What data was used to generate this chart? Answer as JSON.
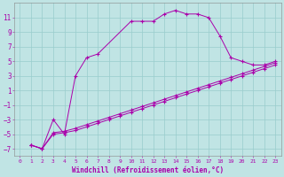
{
  "xlabel": "Windchill (Refroidissement éolien,°C)",
  "bg_color": "#c0e4e4",
  "grid_color": "#99cccc",
  "line_color": "#aa00aa",
  "xlim": [
    -0.5,
    23.5
  ],
  "ylim": [
    -8,
    13
  ],
  "xticks": [
    0,
    1,
    2,
    3,
    4,
    5,
    6,
    7,
    8,
    9,
    10,
    11,
    12,
    13,
    14,
    15,
    16,
    17,
    18,
    19,
    20,
    21,
    22,
    23
  ],
  "yticks": [
    -7,
    -5,
    -3,
    -1,
    1,
    3,
    5,
    7,
    9,
    11
  ],
  "line1_x": [
    1,
    2,
    3,
    4,
    5,
    6,
    7,
    10,
    11,
    12,
    13,
    14,
    15,
    16,
    17,
    18,
    19,
    20,
    21,
    22,
    23
  ],
  "line1_y": [
    -6.5,
    -7,
    -3,
    -5,
    3,
    5.5,
    6,
    10.5,
    10.5,
    10.5,
    11.5,
    12,
    11.5,
    11.5,
    11,
    8.5,
    5.5,
    5,
    4.5,
    4.5,
    5
  ],
  "line2_x": [
    1,
    2,
    3,
    4,
    5,
    6,
    7,
    8,
    9,
    10,
    11,
    12,
    13,
    14,
    15,
    16,
    17,
    18,
    19,
    20,
    21,
    22,
    23
  ],
  "line2_y": [
    -6.5,
    -7,
    -5,
    -4.8,
    -4.5,
    -4.0,
    -3.5,
    -3.0,
    -2.5,
    -2.0,
    -1.5,
    -1.0,
    -0.5,
    0.0,
    0.5,
    1.0,
    1.5,
    2.0,
    2.5,
    3.0,
    3.5,
    4.0,
    4.5
  ],
  "line3_x": [
    1,
    2,
    3,
    4,
    5,
    6,
    7,
    8,
    9,
    10,
    11,
    12,
    13,
    14,
    15,
    16,
    17,
    18,
    19,
    20,
    21,
    22,
    23
  ],
  "line3_y": [
    -6.5,
    -7,
    -4.8,
    -4.6,
    -4.2,
    -3.7,
    -3.2,
    -2.7,
    -2.2,
    -1.7,
    -1.2,
    -0.7,
    -0.2,
    0.3,
    0.8,
    1.3,
    1.8,
    2.3,
    2.8,
    3.3,
    3.8,
    4.3,
    4.8
  ],
  "marker_size": 2.5,
  "lw": 0.7,
  "xlabel_fontsize": 5.5,
  "tick_fontsize_x": 4.5,
  "tick_fontsize_y": 5.5
}
